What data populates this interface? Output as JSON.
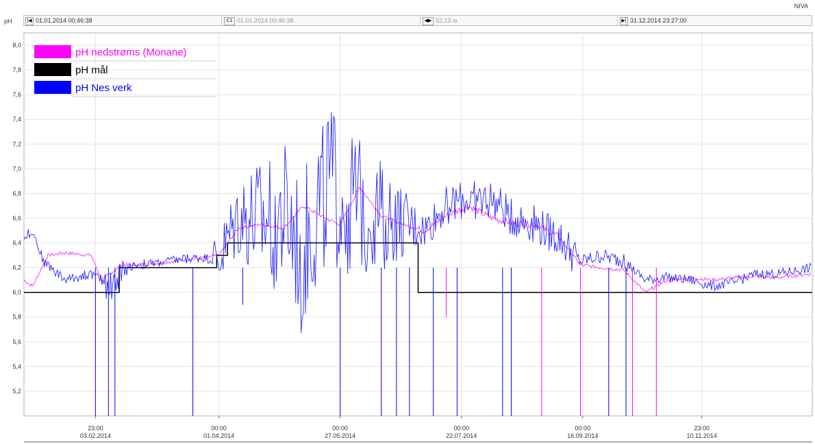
{
  "brand": "NIVA",
  "axis_unit": "pH",
  "toolbar": {
    "start_time": "01.01.2014 00:46:38",
    "cursor_label": "C1",
    "cursor_time": "01.01.2014 00:46:38",
    "span": "52,13 w",
    "end_time": "31.12.2014 23:27:00"
  },
  "icons": {
    "start": "skip-start-icon",
    "cursor": "cursor-c1-icon",
    "span": "span-arrows-icon",
    "end": "skip-end-icon"
  },
  "chart_data": {
    "type": "line",
    "title": "",
    "xlabel": "",
    "ylabel": "pH",
    "x_range": [
      "2014-01-01",
      "2014-12-31"
    ],
    "ylim": [
      5.0,
      8.1
    ],
    "y_ticks": [
      "8,0",
      "7,8",
      "7,6",
      "7,4",
      "7,2",
      "7,0",
      "6,8",
      "6,6",
      "6,4",
      "6,2",
      "6,0",
      "5,8",
      "5,6",
      "5,4",
      "5,2"
    ],
    "y_tick_values": [
      8.0,
      7.8,
      7.6,
      7.4,
      7.2,
      7.0,
      6.8,
      6.6,
      6.4,
      6.2,
      6.0,
      5.8,
      5.6,
      5.4,
      5.2
    ],
    "x_ticks": [
      {
        "date": "2014-02-03",
        "time": "23:00",
        "label": "03.02.2014"
      },
      {
        "date": "2014-04-01",
        "time": "00:00",
        "label": "01.04.2014"
      },
      {
        "date": "2014-05-27",
        "time": "00:00",
        "label": "27.05.2014"
      },
      {
        "date": "2014-07-22",
        "time": "00:00",
        "label": "22.07.2014"
      },
      {
        "date": "2014-09-16",
        "time": "00:00",
        "label": "16.09.2014"
      },
      {
        "date": "2014-11-10",
        "time": "23:00",
        "label": "10.11.2014"
      }
    ],
    "grid": true,
    "legend_position": "top-left",
    "series": [
      {
        "name": "pH nedstrøms (Monane)",
        "color": "#ff00ff",
        "x": [
          "2014-01-01",
          "2014-01-05",
          "2014-01-12",
          "2014-01-20",
          "2014-02-01",
          "2014-02-06",
          "2014-02-15",
          "2014-03-01",
          "2014-03-15",
          "2014-03-25",
          "2014-04-01",
          "2014-04-10",
          "2014-04-20",
          "2014-05-01",
          "2014-05-10",
          "2014-05-20",
          "2014-05-27",
          "2014-06-05",
          "2014-06-15",
          "2014-06-25",
          "2014-07-05",
          "2014-07-15",
          "2014-07-25",
          "2014-08-05",
          "2014-08-15",
          "2014-08-25",
          "2014-09-05",
          "2014-09-15",
          "2014-09-25",
          "2014-10-05",
          "2014-10-15",
          "2014-10-25",
          "2014-11-05",
          "2014-11-15",
          "2014-11-25",
          "2014-12-05",
          "2014-12-15",
          "2014-12-31"
        ],
        "y": [
          6.1,
          6.05,
          6.3,
          6.32,
          6.3,
          6.1,
          6.22,
          6.23,
          6.26,
          6.28,
          6.3,
          6.52,
          6.55,
          6.52,
          6.7,
          6.6,
          6.55,
          6.85,
          6.62,
          6.55,
          6.5,
          6.62,
          6.7,
          6.6,
          6.56,
          6.55,
          6.45,
          6.22,
          6.2,
          6.18,
          6.0,
          6.1,
          6.12,
          6.1,
          6.12,
          6.13,
          6.12,
          6.15
        ]
      },
      {
        "name": "pH mål",
        "color": "#000000",
        "x": [
          "2014-01-01",
          "2014-02-14",
          "2014-02-14",
          "2014-03-31",
          "2014-03-31",
          "2014-04-05",
          "2014-04-05",
          "2014-07-02",
          "2014-07-02",
          "2014-12-31"
        ],
        "y": [
          6.0,
          6.0,
          6.2,
          6.2,
          6.3,
          6.3,
          6.4,
          6.4,
          6.0,
          6.0
        ]
      },
      {
        "name": "pH  Nes verk",
        "color": "#0000ff",
        "x": [
          "2014-01-01",
          "2014-01-05",
          "2014-01-10",
          "2014-01-20",
          "2014-02-01",
          "2014-02-10",
          "2014-02-20",
          "2014-03-01",
          "2014-03-15",
          "2014-03-25",
          "2014-04-01",
          "2014-04-10",
          "2014-04-20",
          "2014-05-01",
          "2014-05-10",
          "2014-05-20",
          "2014-05-27",
          "2014-06-05",
          "2014-06-15",
          "2014-06-25",
          "2014-07-05",
          "2014-07-15",
          "2014-07-25",
          "2014-08-05",
          "2014-08-15",
          "2014-08-25",
          "2014-09-05",
          "2014-09-15",
          "2014-09-25",
          "2014-10-05",
          "2014-10-15",
          "2014-10-25",
          "2014-11-05",
          "2014-11-15",
          "2014-11-25",
          "2014-12-05",
          "2014-12-15",
          "2014-12-31"
        ],
        "y": [
          6.45,
          6.5,
          6.25,
          6.1,
          6.15,
          6.05,
          6.22,
          6.23,
          6.27,
          6.28,
          6.25,
          6.6,
          6.55,
          6.6,
          6.3,
          6.9,
          6.75,
          6.7,
          6.62,
          6.55,
          6.5,
          6.7,
          6.75,
          6.75,
          6.6,
          6.55,
          6.45,
          6.25,
          6.3,
          6.25,
          6.1,
          6.12,
          6.1,
          6.05,
          6.08,
          6.15,
          6.15,
          6.2
        ]
      }
    ],
    "amplitude_note": "",
    "spikes": [
      {
        "date": "2014-02-03",
        "low": 5.0,
        "series": 2
      },
      {
        "date": "2014-02-09",
        "low": 5.0,
        "series": 2
      },
      {
        "date": "2014-02-12",
        "low": 5.0,
        "series": 2
      },
      {
        "date": "2014-03-20",
        "low": 5.0,
        "series": 2
      },
      {
        "date": "2014-04-12",
        "low": 5.9,
        "series": 2
      },
      {
        "date": "2014-05-27",
        "low": 5.0,
        "series": 2
      },
      {
        "date": "2014-06-15",
        "low": 5.0,
        "series": 2
      },
      {
        "date": "2014-06-22",
        "low": 5.0,
        "series": 2
      },
      {
        "date": "2014-06-28",
        "low": 5.0,
        "series": 2
      },
      {
        "date": "2014-07-09",
        "low": 5.0,
        "series": 2
      },
      {
        "date": "2014-07-15",
        "low": 5.8,
        "series": 0
      },
      {
        "date": "2014-07-20",
        "low": 5.0,
        "series": 2
      },
      {
        "date": "2014-08-10",
        "low": 5.0,
        "series": 2
      },
      {
        "date": "2014-08-14",
        "low": 5.0,
        "series": 2
      },
      {
        "date": "2014-08-28",
        "low": 5.0,
        "series": 0
      },
      {
        "date": "2014-09-15",
        "low": 5.0,
        "series": 0
      },
      {
        "date": "2014-09-28",
        "low": 5.0,
        "series": 2
      },
      {
        "date": "2014-10-06",
        "low": 5.0,
        "series": 2
      },
      {
        "date": "2014-10-09",
        "low": 5.0,
        "series": 0
      },
      {
        "date": "2014-10-20",
        "low": 5.0,
        "series": 0
      }
    ]
  }
}
